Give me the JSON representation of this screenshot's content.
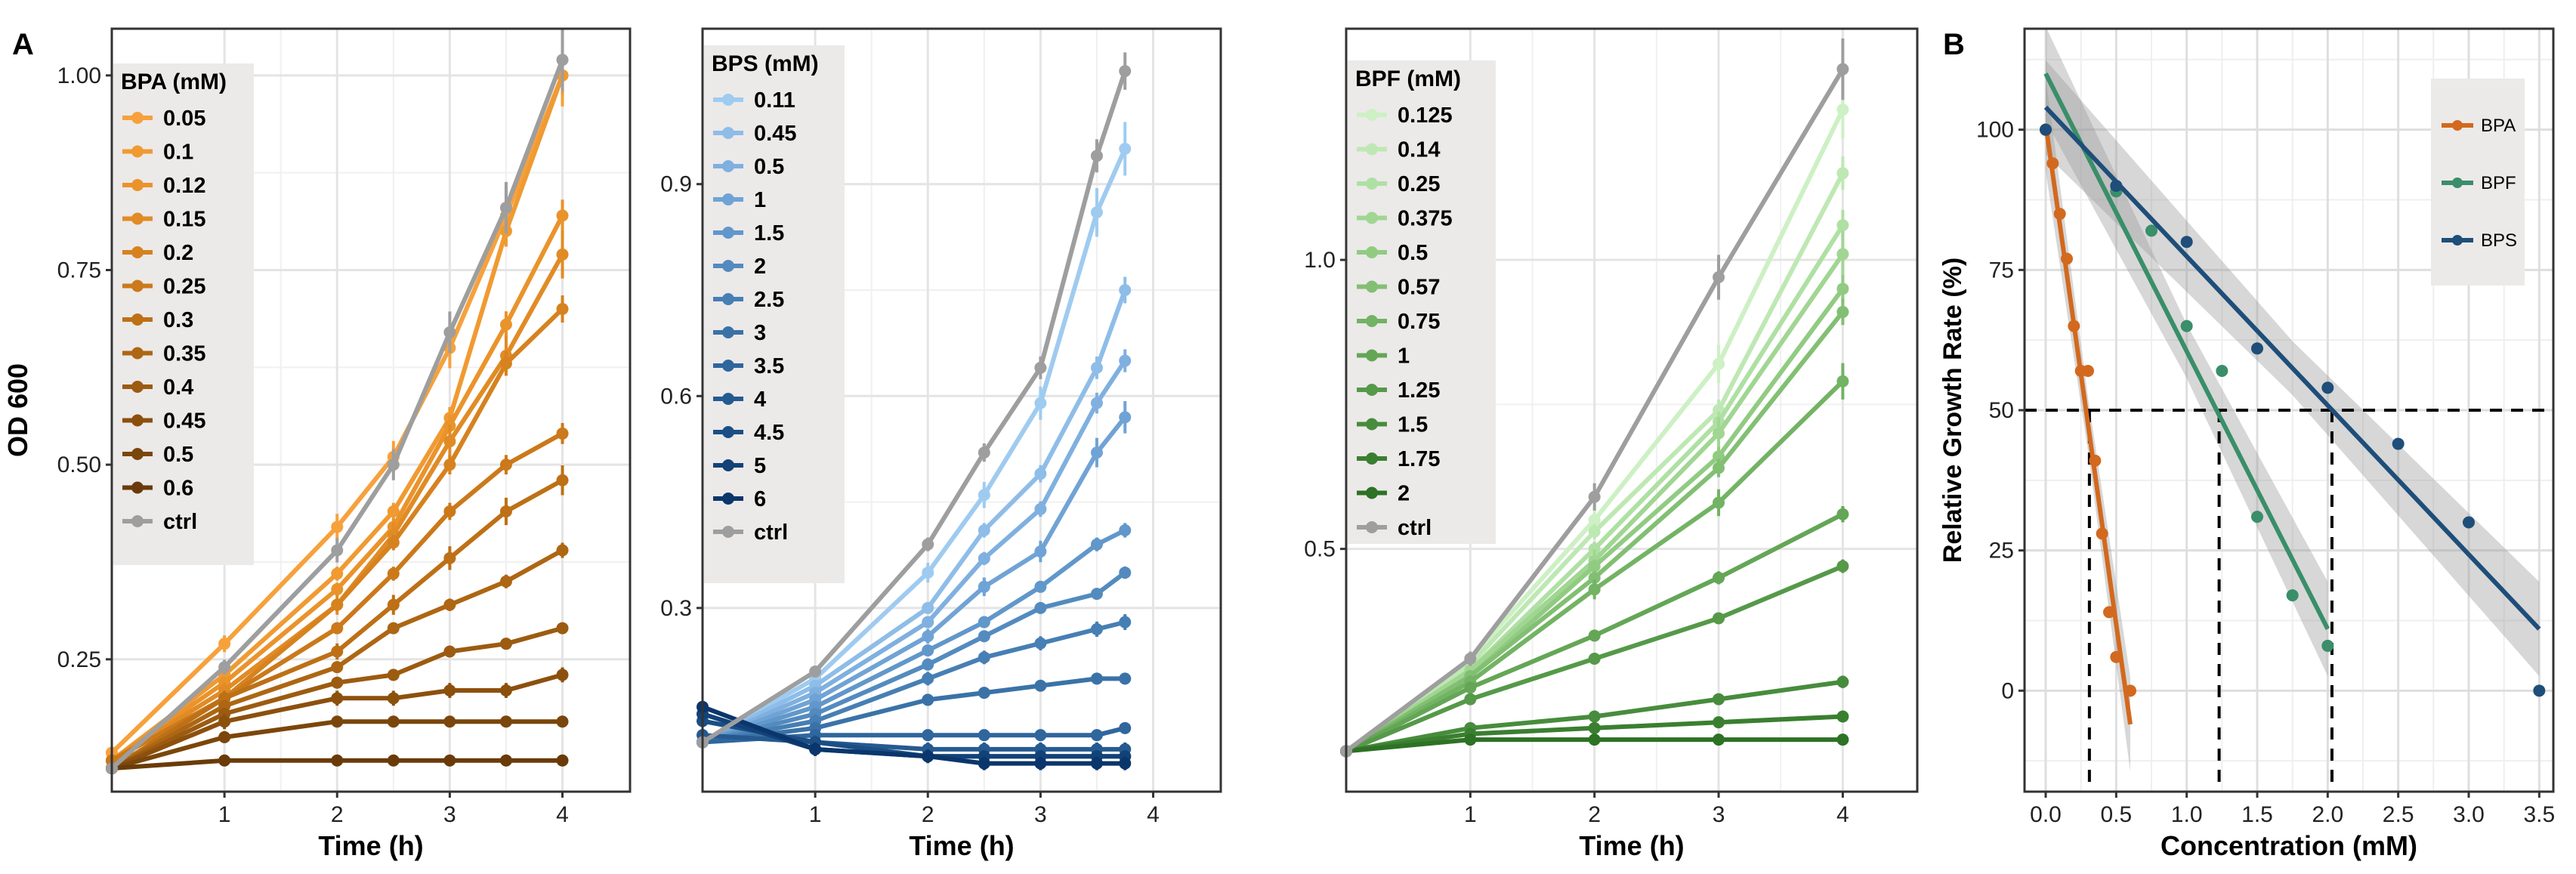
{
  "panel_labels": {
    "a": "A",
    "b": "B"
  },
  "chart_data": [
    {
      "type": "line",
      "panel": "A",
      "title": "",
      "xlabel": "Time (h)",
      "ylabel": "OD 600",
      "legend_title": "BPA (mM)",
      "xlim": [
        0,
        4.6
      ],
      "ylim": [
        0.08,
        1.06
      ],
      "xticks": [
        1,
        2,
        3,
        4
      ],
      "yticks": [
        0.25,
        0.5,
        0.75,
        1.0
      ],
      "ytick_labels": [
        "0.25",
        "0.50",
        "0.75",
        "1.00"
      ],
      "x": [
        0,
        1,
        2,
        2.5,
        3,
        3.5,
        4
      ],
      "series": [
        {
          "name": "0.05",
          "color": "#f6a13c",
          "values": [
            0.13,
            0.27,
            0.42,
            0.51,
            0.65,
            0.82,
            1.0
          ]
        },
        {
          "name": "0.1",
          "color": "#f09a32",
          "values": [
            0.12,
            0.23,
            0.36,
            0.44,
            0.56,
            0.8,
            1.0
          ]
        },
        {
          "name": "0.12",
          "color": "#ea932b",
          "values": [
            0.12,
            0.22,
            0.34,
            0.42,
            0.55,
            0.68,
            0.82
          ]
        },
        {
          "name": "0.15",
          "color": "#e18b25",
          "values": [
            0.12,
            0.21,
            0.32,
            0.41,
            0.53,
            0.64,
            0.77
          ]
        },
        {
          "name": "0.2",
          "color": "#d6821f",
          "values": [
            0.12,
            0.2,
            0.32,
            0.4,
            0.5,
            0.63,
            0.7
          ]
        },
        {
          "name": "0.25",
          "color": "#cb791a",
          "values": [
            0.12,
            0.2,
            0.29,
            0.36,
            0.44,
            0.5,
            0.54
          ]
        },
        {
          "name": "0.3",
          "color": "#bd7016",
          "values": [
            0.11,
            0.2,
            0.26,
            0.32,
            0.38,
            0.44,
            0.48
          ]
        },
        {
          "name": "0.35",
          "color": "#ad6613",
          "values": [
            0.11,
            0.19,
            0.24,
            0.29,
            0.32,
            0.35,
            0.39
          ]
        },
        {
          "name": "0.4",
          "color": "#9c5b10",
          "values": [
            0.11,
            0.18,
            0.22,
            0.23,
            0.26,
            0.27,
            0.29
          ]
        },
        {
          "name": "0.45",
          "color": "#8c500d",
          "values": [
            0.11,
            0.17,
            0.2,
            0.2,
            0.21,
            0.21,
            0.23
          ]
        },
        {
          "name": "0.5",
          "color": "#7b460b",
          "values": [
            0.11,
            0.15,
            0.17,
            0.17,
            0.17,
            0.17,
            0.17
          ]
        },
        {
          "name": "0.6",
          "color": "#6a3b08",
          "values": [
            0.11,
            0.12,
            0.12,
            0.12,
            0.12,
            0.12,
            0.12
          ]
        },
        {
          "name": "ctrl",
          "color": "#9e9e9e",
          "values": [
            0.11,
            0.24,
            0.39,
            0.5,
            0.67,
            0.83,
            1.02
          ]
        }
      ]
    },
    {
      "type": "line",
      "panel": "A",
      "title": "",
      "xlabel": "Time (h)",
      "ylabel": "",
      "legend_title": "BPS (mM)",
      "xlim": [
        0,
        4.6
      ],
      "ylim": [
        0.04,
        1.12
      ],
      "xticks": [
        1,
        2,
        3,
        4
      ],
      "yticks": [
        0.3,
        0.6,
        0.9
      ],
      "ytick_labels": [
        "0.3",
        "0.6",
        "0.9"
      ],
      "x": [
        0,
        1,
        2,
        2.5,
        3,
        3.5,
        3.75
      ],
      "series": [
        {
          "name": "0.11",
          "color": "#9fcbf0",
          "values": [
            0.11,
            0.2,
            0.35,
            0.46,
            0.59,
            0.86,
            0.95
          ]
        },
        {
          "name": "0.45",
          "color": "#8ebde8",
          "values": [
            0.11,
            0.19,
            0.3,
            0.41,
            0.49,
            0.64,
            0.75
          ]
        },
        {
          "name": "0.5",
          "color": "#7fb0df",
          "values": [
            0.11,
            0.18,
            0.28,
            0.37,
            0.44,
            0.59,
            0.65
          ]
        },
        {
          "name": "1",
          "color": "#70a3d5",
          "values": [
            0.11,
            0.17,
            0.26,
            0.33,
            0.38,
            0.52,
            0.57
          ]
        },
        {
          "name": "1.5",
          "color": "#6197ca",
          "values": [
            0.11,
            0.16,
            0.24,
            0.28,
            0.33,
            0.39,
            0.41
          ]
        },
        {
          "name": "2",
          "color": "#538bbf",
          "values": [
            0.11,
            0.15,
            0.22,
            0.26,
            0.3,
            0.32,
            0.35
          ]
        },
        {
          "name": "2.5",
          "color": "#467fb4",
          "values": [
            0.11,
            0.14,
            0.2,
            0.23,
            0.25,
            0.27,
            0.28
          ]
        },
        {
          "name": "3",
          "color": "#3a72a8",
          "values": [
            0.11,
            0.13,
            0.17,
            0.18,
            0.19,
            0.2,
            0.2
          ]
        },
        {
          "name": "3.5",
          "color": "#2f669d",
          "values": [
            0.11,
            0.12,
            0.12,
            0.12,
            0.12,
            0.12,
            0.13
          ]
        },
        {
          "name": "4",
          "color": "#255a91",
          "values": [
            0.12,
            0.11,
            0.1,
            0.1,
            0.1,
            0.1,
            0.1
          ]
        },
        {
          "name": "4.5",
          "color": "#1b4e85",
          "values": [
            0.14,
            0.11,
            0.09,
            0.09,
            0.09,
            0.09,
            0.09
          ]
        },
        {
          "name": "5",
          "color": "#124278",
          "values": [
            0.15,
            0.1,
            0.09,
            0.09,
            0.09,
            0.09,
            0.09
          ]
        },
        {
          "name": "6",
          "color": "#0a366b",
          "values": [
            0.16,
            0.1,
            0.09,
            0.08,
            0.08,
            0.08,
            0.08
          ]
        },
        {
          "name": "ctrl",
          "color": "#9e9e9e",
          "values": [
            0.11,
            0.21,
            0.39,
            0.52,
            0.64,
            0.94,
            1.06
          ]
        }
      ]
    },
    {
      "type": "line",
      "panel": "A",
      "title": "",
      "xlabel": "Time (h)",
      "ylabel": "",
      "legend_title": "BPF (mM)",
      "xlim": [
        0,
        4.6
      ],
      "ylim": [
        0.08,
        1.4
      ],
      "xticks": [
        1,
        2,
        3,
        4
      ],
      "yticks": [
        0.5,
        1.0
      ],
      "ytick_labels": [
        "0.5",
        "1.0"
      ],
      "x": [
        0,
        1,
        2,
        3,
        4
      ],
      "series": [
        {
          "name": "0.125",
          "color": "#cdf0c4",
          "values": [
            0.15,
            0.31,
            0.55,
            0.82,
            1.26
          ]
        },
        {
          "name": "0.14",
          "color": "#bee8b3",
          "values": [
            0.15,
            0.3,
            0.53,
            0.74,
            1.15
          ]
        },
        {
          "name": "0.25",
          "color": "#afe0a3",
          "values": [
            0.15,
            0.29,
            0.5,
            0.72,
            1.06
          ]
        },
        {
          "name": "0.375",
          "color": "#a0d692",
          "values": [
            0.15,
            0.29,
            0.48,
            0.7,
            1.01
          ]
        },
        {
          "name": "0.5",
          "color": "#91cb82",
          "values": [
            0.15,
            0.28,
            0.47,
            0.66,
            0.95
          ]
        },
        {
          "name": "0.57",
          "color": "#82bf73",
          "values": [
            0.15,
            0.28,
            0.45,
            0.64,
            0.91
          ]
        },
        {
          "name": "0.75",
          "color": "#73b364",
          "values": [
            0.15,
            0.27,
            0.43,
            0.58,
            0.79
          ]
        },
        {
          "name": "1",
          "color": "#64a656",
          "values": [
            0.15,
            0.26,
            0.35,
            0.45,
            0.56
          ]
        },
        {
          "name": "1.25",
          "color": "#559949",
          "values": [
            0.15,
            0.24,
            0.31,
            0.38,
            0.47
          ]
        },
        {
          "name": "1.5",
          "color": "#478c3c",
          "values": [
            0.15,
            0.19,
            0.21,
            0.24,
            0.27
          ]
        },
        {
          "name": "1.75",
          "color": "#3a7f30",
          "values": [
            0.15,
            0.18,
            0.19,
            0.2,
            0.21
          ]
        },
        {
          "name": "2",
          "color": "#2d7225",
          "values": [
            0.15,
            0.17,
            0.17,
            0.17,
            0.17
          ]
        },
        {
          "name": "ctrl",
          "color": "#9e9e9e",
          "values": [
            0.15,
            0.31,
            0.59,
            0.97,
            1.33
          ]
        }
      ]
    },
    {
      "type": "scatter",
      "panel": "B",
      "title": "",
      "xlabel": "Concentration (mM)",
      "ylabel": "Relative Growth Rate (%)",
      "xlim": [
        -0.15,
        3.6
      ],
      "ylim": [
        -18,
        118
      ],
      "xticks": [
        0,
        0.5,
        1,
        1.5,
        2,
        2.5,
        3,
        3.5
      ],
      "xtick_labels": [
        "0.0",
        "0.5",
        "1.0",
        "1.5",
        "2.0",
        "2.5",
        "3.0",
        "3.5"
      ],
      "yticks": [
        0,
        25,
        50,
        75,
        100
      ],
      "ytick_labels": [
        "0",
        "25",
        "50",
        "75",
        "100"
      ],
      "threshold_y": 50,
      "ic50": {
        "BPA": 0.31,
        "BPF": 1.23,
        "BPS": 2.03
      },
      "series": [
        {
          "name": "BPA",
          "color": "#d2691e",
          "x": [
            0,
            0.05,
            0.1,
            0.15,
            0.2,
            0.25,
            0.3,
            0.35,
            0.4,
            0.45,
            0.5,
            0.6
          ],
          "y": [
            100,
            94,
            85,
            77,
            65,
            57,
            57,
            41,
            28,
            14,
            6,
            0
          ],
          "fit": {
            "x0": 0,
            "y0": 101,
            "x1": 0.6,
            "y1": -6
          }
        },
        {
          "name": "BPF",
          "color": "#3a8e6a",
          "x": [
            0,
            0.5,
            0.75,
            1,
            1.25,
            1.5,
            1.75,
            2
          ],
          "y": [
            100,
            89,
            82,
            65,
            57,
            31,
            17,
            8
          ],
          "fit": {
            "x0": 0,
            "y0": 110,
            "x1": 2.0,
            "y1": 11
          }
        },
        {
          "name": "BPS",
          "color": "#1e4e79",
          "x": [
            0,
            0.5,
            1,
            1.5,
            2,
            2.5,
            3,
            3.5
          ],
          "y": [
            100,
            90,
            80,
            61,
            54,
            44,
            30,
            0
          ],
          "fit": {
            "x0": 0,
            "y0": 104,
            "x1": 3.5,
            "y1": 11
          }
        }
      ]
    }
  ]
}
